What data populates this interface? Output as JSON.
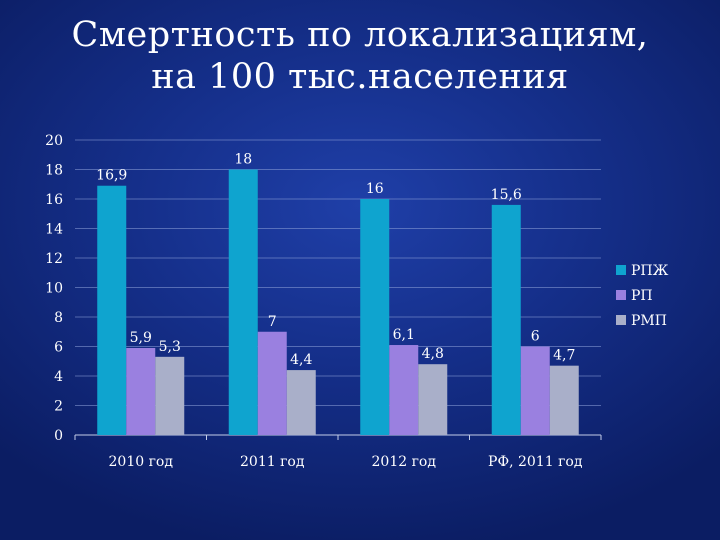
{
  "slide": {
    "title_line1": "Смертность по локализациям,",
    "title_line2": "на 100 тыс.населения"
  },
  "chart_data": {
    "type": "bar",
    "categories": [
      "2010 год",
      "2011 год",
      "2012 год",
      "РФ, 2011 год"
    ],
    "series": [
      {
        "name": "РПЖ",
        "values": [
          16.9,
          18,
          16,
          15.6
        ],
        "labels": [
          "16,9",
          "18",
          "16",
          "15,6"
        ],
        "color": "#0fa4cf"
      },
      {
        "name": "РП",
        "values": [
          5.9,
          7,
          6.1,
          6
        ],
        "labels": [
          "5,9",
          "7",
          "6,1",
          "6"
        ],
        "color": "#9a80e0"
      },
      {
        "name": "РМП",
        "values": [
          5.3,
          4.4,
          4.8,
          4.7
        ],
        "labels": [
          "5,3",
          "4,4",
          "4,8",
          "4,7"
        ],
        "color": "#a9afc9"
      }
    ],
    "y_ticks": [
      "0",
      "2",
      "4",
      "6",
      "8",
      "10",
      "12",
      "14",
      "16",
      "18",
      "20"
    ],
    "ylim": [
      0,
      20
    ],
    "grid": true,
    "legend_position": "right",
    "title": "Смертность по локализациям, на 100 тыс.населения"
  }
}
